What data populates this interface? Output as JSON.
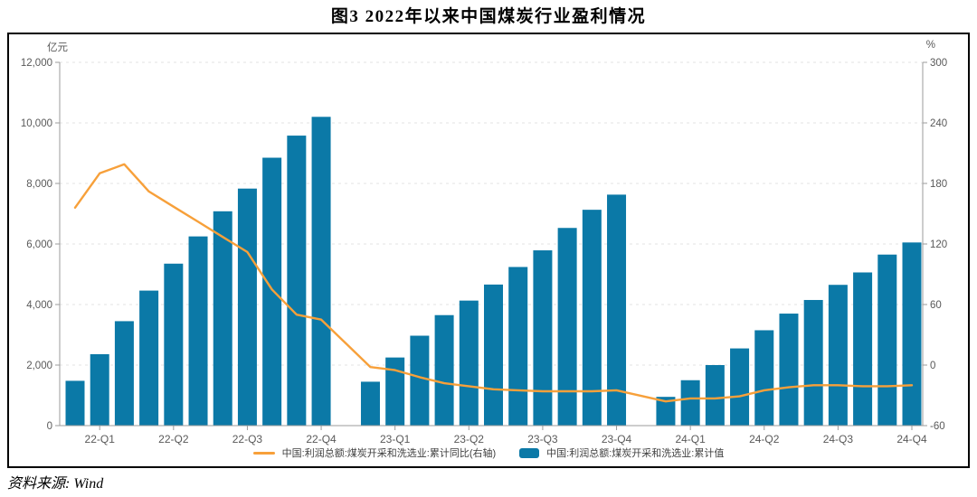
{
  "title": "图3  2022年以来中国煤炭行业盈利情况",
  "source": "资料来源: Wind",
  "legend": [
    {
      "label": "中国:利润总额:煤炭开采和洗选业:累计同比(右轴)",
      "type": "line",
      "color": "#F7A03A"
    },
    {
      "label": "中国:利润总额:煤炭开采和洗选业:累计值",
      "type": "bar",
      "color": "#0B79A7"
    }
  ],
  "chart_data": {
    "type": "combo-bar-line",
    "months": [
      "2022-02",
      "2022-03",
      "2022-04",
      "2022-05",
      "2022-06",
      "2022-07",
      "2022-08",
      "2022-09",
      "2022-10",
      "2022-11",
      "2022-12",
      "2023-02",
      "2023-03",
      "2023-04",
      "2023-05",
      "2023-06",
      "2023-07",
      "2023-08",
      "2023-09",
      "2023-10",
      "2023-11",
      "2023-12",
      "2024-02",
      "2024-03",
      "2024-04",
      "2024-05",
      "2024-06",
      "2024-07",
      "2024-08",
      "2024-09",
      "2024-10",
      "2024-11",
      "2024-12"
    ],
    "series": [
      {
        "name": "中国:利润总额:煤炭开采和洗选业:累计值",
        "type": "bar",
        "axis": "left",
        "color": "#0B79A7",
        "values": [
          1480,
          2360,
          3450,
          4460,
          5350,
          6250,
          7080,
          7830,
          8850,
          9580,
          10200,
          1450,
          2250,
          2970,
          3650,
          4130,
          4660,
          5240,
          5790,
          6530,
          7130,
          7630,
          950,
          1500,
          2000,
          2550,
          3150,
          3700,
          4150,
          4650,
          5060,
          5650,
          6050
        ]
      },
      {
        "name": "中国:利润总额:煤炭开采和洗选业:累计同比(右轴)",
        "type": "line",
        "axis": "right",
        "color": "#F7A03A",
        "values": [
          156,
          190,
          199,
          172,
          157,
          142,
          127,
          112,
          75,
          50,
          45,
          -2,
          -5,
          -12,
          -18,
          -21,
          -24,
          -25,
          -26,
          -26,
          -26,
          -25,
          -36,
          -33,
          -33,
          -31,
          -25,
          -22,
          -20,
          -20,
          -21,
          -21,
          -20
        ]
      }
    ],
    "left_axis": {
      "label": "亿元",
      "min": 0,
      "max": 12000,
      "tick_step": 2000,
      "tick_labels": [
        "12,000",
        "10,000",
        "8,000",
        "6,000",
        "4,000",
        "2,000",
        "0"
      ]
    },
    "right_axis": {
      "label": "%",
      "min": -60,
      "max": 300,
      "tick_step": 60,
      "tick_labels": [
        "300",
        "240",
        "180",
        "120",
        "60",
        "0",
        "-60"
      ]
    },
    "x_ticks": [
      {
        "slot": 1,
        "label": "22-Q1"
      },
      {
        "slot": 4,
        "label": "22-Q2"
      },
      {
        "slot": 7,
        "label": "22-Q3"
      },
      {
        "slot": 10,
        "label": "22-Q4"
      },
      {
        "slot": 13,
        "label": "23-Q1"
      },
      {
        "slot": 16,
        "label": "23-Q2"
      },
      {
        "slot": 19,
        "label": "23-Q3"
      },
      {
        "slot": 22,
        "label": "23-Q4"
      },
      {
        "slot": 25,
        "label": "24-Q1"
      },
      {
        "slot": 28,
        "label": "24-Q2"
      },
      {
        "slot": 31,
        "label": "24-Q3"
      },
      {
        "slot": 34,
        "label": "24-Q4"
      }
    ],
    "grid": "horizontal-dashed",
    "legend_position": "bottom",
    "colors": {
      "bar": "#0B79A7",
      "line": "#F7A03A",
      "grid": "#E3E3E3",
      "axis": "#9B9B9B",
      "tick_text": "#595959"
    }
  }
}
